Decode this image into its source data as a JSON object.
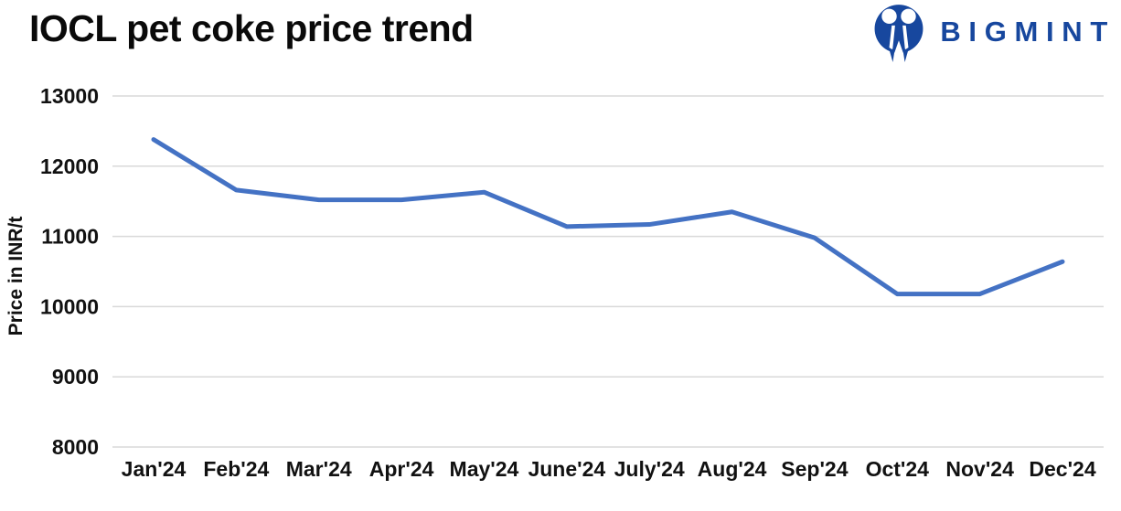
{
  "header": {
    "title": "IOCL pet coke price trend",
    "brand": {
      "name": "BIGMINT",
      "text_color": "#17479E",
      "icon": "bigmint-people-m-icon",
      "icon_color": "#17479E"
    }
  },
  "chart_data": {
    "type": "line",
    "title": "IOCL pet coke price trend",
    "xlabel": "",
    "ylabel": "Price in INR/t",
    "categories": [
      "Jan'24",
      "Feb'24",
      "Mar'24",
      "Apr'24",
      "May'24",
      "June'24",
      "July'24",
      "Aug'24",
      "Sep'24",
      "Oct'24",
      "Nov'24",
      "Dec'24"
    ],
    "series": [
      {
        "name": "IOCL pet coke price",
        "values": [
          12380,
          11660,
          11520,
          11520,
          11630,
          11140,
          11170,
          11350,
          10980,
          10180,
          10180,
          10640
        ]
      }
    ],
    "ylim": [
      8000,
      13000
    ],
    "yticks": [
      13000,
      12000,
      11000,
      10000,
      9000,
      8000
    ],
    "line_color": "#4472C4",
    "gridline_color": "#D9D9D9",
    "grid": "horizontal-only",
    "legend": "none"
  }
}
